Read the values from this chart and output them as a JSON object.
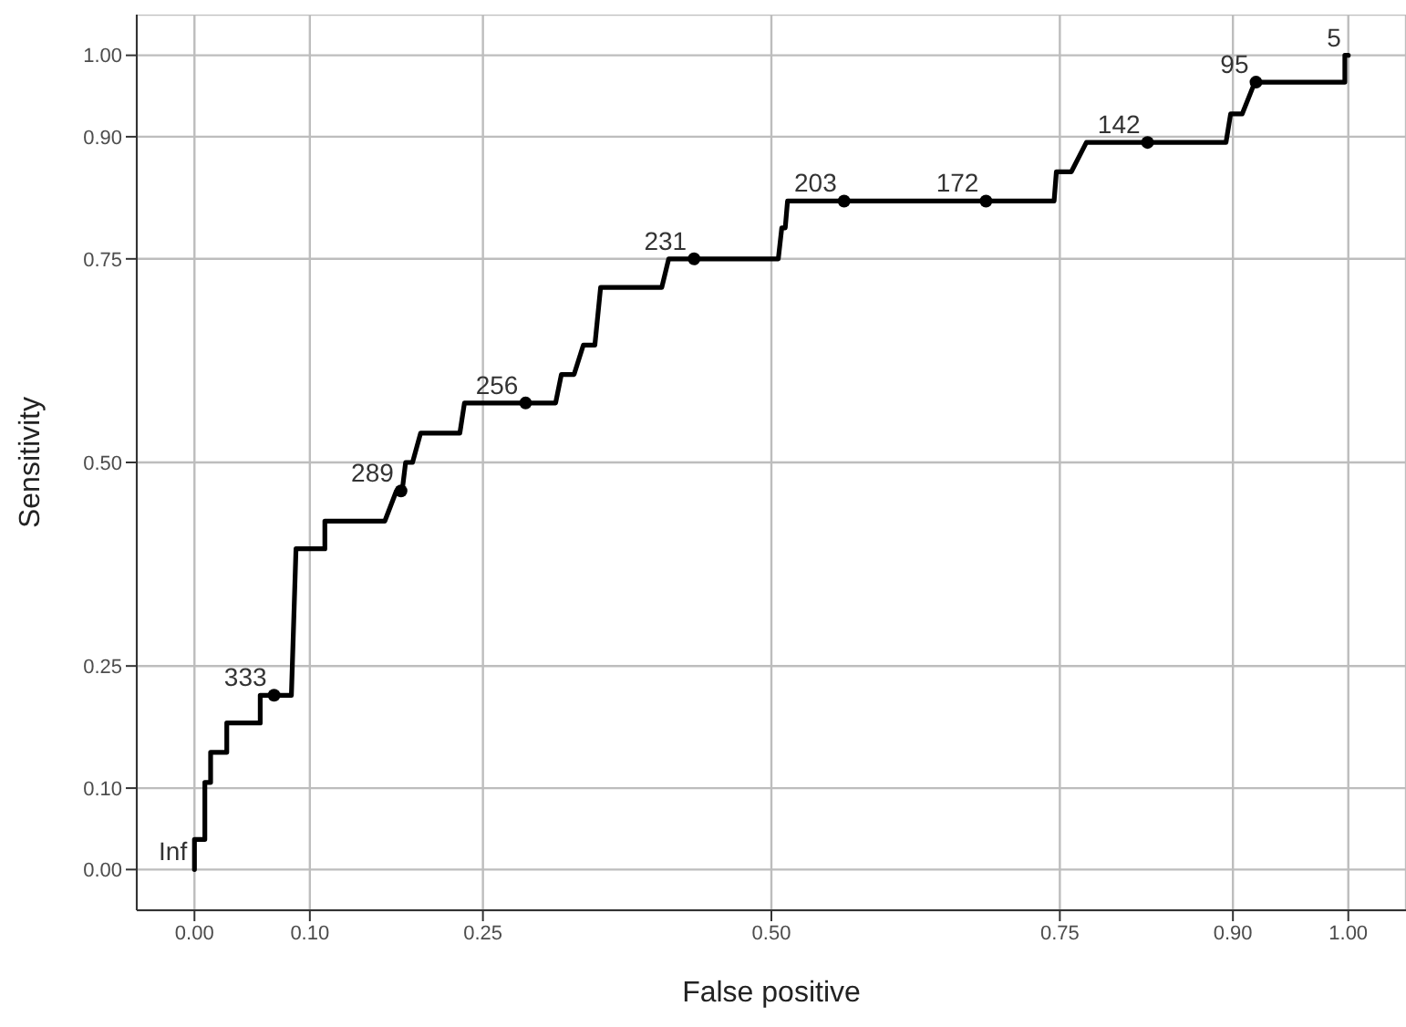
{
  "chart_data": {
    "type": "line",
    "xlabel": "False positive",
    "ylabel": "Sensitivity",
    "xlim": [
      -0.05,
      1.05
    ],
    "ylim": [
      -0.05,
      1.05
    ],
    "xticks": [
      {
        "value": 0,
        "label": "0.00"
      },
      {
        "value": 0.1,
        "label": "0.10"
      },
      0.25,
      {
        "value": 0.5,
        "label": "0.50"
      },
      0.75,
      {
        "value": 0.9,
        "label": "0.90"
      },
      {
        "value": 1,
        "label": "1.00"
      }
    ],
    "yticks": [
      {
        "value": 0,
        "label": "0.00"
      },
      {
        "value": 0.1,
        "label": "0.10"
      },
      0.25,
      {
        "value": 0.5,
        "label": "0.50"
      },
      0.75,
      {
        "value": 0.9,
        "label": "0.90"
      },
      {
        "value": 1,
        "label": "1.00"
      }
    ],
    "grid": true,
    "series": [
      {
        "color": "#000000",
        "marker": "none",
        "line_style": "solid",
        "x": [
          0,
          0,
          0.009,
          0.009,
          0.014,
          0.014,
          0.028,
          0.028,
          0.057,
          0.057,
          0.084,
          0.088,
          0.113,
          0.113,
          0.165,
          0.175,
          0.18,
          0.183,
          0.189,
          0.196,
          0.23,
          0.234,
          0.313,
          0.318,
          0.329,
          0.337,
          0.347,
          0.352,
          0.405,
          0.411,
          0.506,
          0.509,
          0.512,
          0.514,
          0.745,
          0.747,
          0.76,
          0.773,
          0.894,
          0.898,
          0.908,
          0.919,
          0.997,
          0.997,
          1
        ],
        "values": [
          0,
          0.037,
          0.037,
          0.107,
          0.107,
          0.144,
          0.144,
          0.18,
          0.18,
          0.214,
          0.214,
          0.394,
          0.394,
          0.428,
          0.428,
          0.465,
          0.465,
          0.5,
          0.5,
          0.536,
          0.536,
          0.573,
          0.573,
          0.608,
          0.608,
          0.644,
          0.644,
          0.715,
          0.715,
          0.75,
          0.75,
          0.788,
          0.788,
          0.821,
          0.821,
          0.857,
          0.857,
          0.893,
          0.893,
          0.928,
          0.928,
          0.967,
          0.967,
          1,
          1
        ]
      },
      {
        "type": "scatter",
        "color": "#000000",
        "marker": "circle",
        "x": [
          0.069,
          0.179,
          0.287,
          0.433,
          0.563,
          0.686,
          0.826,
          0.92
        ],
        "values": [
          0.214,
          0.465,
          0.573,
          0.75,
          0.821,
          0.821,
          0.893,
          0.967
        ]
      }
    ],
    "annotations": [
      {
        "text": "Inf",
        "x": 0,
        "y": 0
      },
      {
        "text": "333",
        "x": 0.069,
        "y": 0.214
      },
      {
        "text": "289",
        "x": 0.179,
        "y": 0.465
      },
      {
        "text": "256",
        "x": 0.287,
        "y": 0.573
      },
      {
        "text": "231",
        "x": 0.433,
        "y": 0.75
      },
      {
        "text": "203",
        "x": 0.563,
        "y": 0.821
      },
      {
        "text": "172",
        "x": 0.686,
        "y": 0.821
      },
      {
        "text": "142",
        "x": 0.826,
        "y": 0.893
      },
      {
        "text": "95",
        "x": 0.92,
        "y": 0.967
      },
      {
        "text": "5",
        "x": 1,
        "y": 1
      }
    ]
  }
}
